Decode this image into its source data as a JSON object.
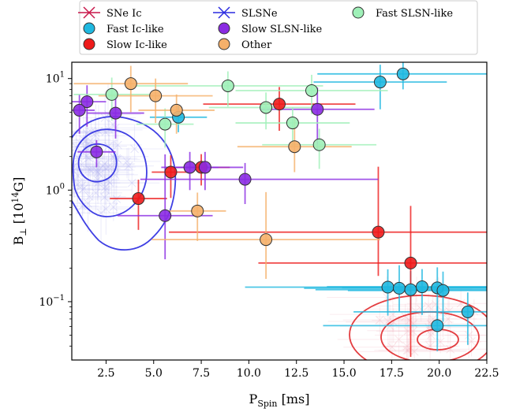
{
  "chart_data": {
    "type": "scatter",
    "xlabel_main": "P",
    "xlabel_sub": "Spin",
    "xlabel_unit": " [ms]",
    "ylabel_main": "B",
    "ylabel_sub": "⊥",
    "ylabel_unit_pre": " [10",
    "ylabel_unit_sup": "14",
    "ylabel_unit_post": "G]",
    "xlim": [
      0.7,
      22.5
    ],
    "ylim": [
      0.03,
      14
    ],
    "yscale": "log",
    "x_ticks": [
      2.5,
      5.0,
      7.5,
      10.0,
      12.5,
      15.0,
      17.5,
      20.0,
      22.5
    ],
    "x_tick_labels": [
      "2.5",
      "5.0",
      "7.5",
      "10.0",
      "12.5",
      "15.0",
      "17.5",
      "20.0",
      "22.5"
    ],
    "y_ticks": [
      0.1,
      1,
      10
    ],
    "y_tick_labels": [
      [
        "10",
        "−1"
      ],
      [
        "10",
        "0"
      ],
      [
        "10",
        "1"
      ]
    ],
    "legend": [
      {
        "label": "SNe Ic",
        "marker": "x",
        "color": "#c8174a"
      },
      {
        "label": "Fast Ic-like",
        "marker": "o",
        "color": "#1fb8e0"
      },
      {
        "label": "Slow Ic-like",
        "marker": "o",
        "color": "#ee1b1b"
      },
      {
        "label": "SLSNe",
        "marker": "x",
        "color": "#2a2ae0"
      },
      {
        "label": "Slow SLSN-like",
        "marker": "o",
        "color": "#8a2be2"
      },
      {
        "label": "Other",
        "marker": "o",
        "color": "#f5b06a"
      },
      {
        "label": "Fast SLSN-like",
        "marker": "o",
        "color": "#9ff0b8"
      }
    ],
    "colors": {
      "fast_ic": "#1fb8e0",
      "slow_ic": "#ee1b1b",
      "slow_slsn": "#8a2be2",
      "fast_slsn": "#9ff0b8",
      "other": "#f5b06a",
      "slsne_contour": "#2a2ae0",
      "snic_contour": "#e0282b",
      "slsne_bg": "#b4b4f0",
      "snic_bg": "#f0b4c0"
    },
    "series": [
      {
        "group": "fast_ic",
        "points": [
          {
            "x": 16.9,
            "y": 9.3,
            "xerr": [
              3.5,
              3.5
            ],
            "yerr": [
              4,
              4
            ]
          },
          {
            "x": 18.1,
            "y": 11.0,
            "xerr": [
              4.5,
              4.5
            ],
            "yerr": [
              3,
              3
            ]
          },
          {
            "x": 6.3,
            "y": 4.5,
            "xerr": [
              1.5,
              1.5
            ],
            "yerr": [
              1.2,
              1.2
            ]
          },
          {
            "x": 17.3,
            "y": 0.135,
            "xerr": [
              7.5,
              7.5
            ],
            "yerr": [
              0.06,
              0.06
            ]
          },
          {
            "x": 17.9,
            "y": 0.132,
            "xerr": [
              5,
              5
            ],
            "yerr": [
              0.05,
              0.08
            ]
          },
          {
            "x": 18.5,
            "y": 0.128,
            "xerr": [
              5,
              5
            ],
            "yerr": [
              0.05,
              0.06
            ]
          },
          {
            "x": 19.1,
            "y": 0.136,
            "xerr": [
              5,
              5
            ],
            "yerr": [
              0.06,
              0.06
            ]
          },
          {
            "x": 19.9,
            "y": 0.133,
            "xerr": [
              5,
              5
            ],
            "yerr": [
              0.07,
              0.07
            ]
          },
          {
            "x": 20.2,
            "y": 0.126,
            "xerr": [
              5,
              5
            ],
            "yerr": [
              0.06,
              0.06
            ]
          },
          {
            "x": 21.5,
            "y": 0.081,
            "xerr": [
              6,
              6
            ],
            "yerr": [
              0.04,
              0.04
            ]
          },
          {
            "x": 19.9,
            "y": 0.061,
            "xerr": [
              6,
              6
            ],
            "yerr": [
              0.025,
              0.03
            ]
          }
        ]
      },
      {
        "group": "slow_ic",
        "points": [
          {
            "x": 11.6,
            "y": 5.9,
            "xerr": [
              4,
              4
            ],
            "yerr": [
              2.5,
              2.5
            ]
          },
          {
            "x": 5.9,
            "y": 1.45,
            "xerr": [
              1,
              1
            ],
            "yerr": [
              0.6,
              0.6
            ]
          },
          {
            "x": 7.5,
            "y": 1.6,
            "xerr": [
              1.5,
              1.5
            ],
            "yerr": [
              0.5,
              0.5
            ]
          },
          {
            "x": 4.2,
            "y": 0.84,
            "xerr": [
              1.5,
              1.5
            ],
            "yerr": [
              0.4,
              0.4
            ]
          },
          {
            "x": 16.8,
            "y": 0.42,
            "xerr": [
              11,
              11
            ],
            "yerr": [
              0.25,
              1.2
            ]
          },
          {
            "x": 18.5,
            "y": 0.222,
            "xerr": [
              8,
              8
            ],
            "yerr": [
              0.19,
              0.5
            ]
          }
        ]
      },
      {
        "group": "slow_slsn",
        "points": [
          {
            "x": 1.5,
            "y": 6.2,
            "xerr": [
              1,
              1
            ],
            "yerr": [
              2.5,
              2.5
            ]
          },
          {
            "x": 1.1,
            "y": 5.2,
            "xerr": [
              0.8,
              0.8
            ],
            "yerr": [
              2,
              2
            ]
          },
          {
            "x": 3.0,
            "y": 4.9,
            "xerr": [
              1.5,
              1.5
            ],
            "yerr": [
              2,
              2
            ]
          },
          {
            "x": 2.0,
            "y": 2.2,
            "xerr": [
              1,
              1
            ],
            "yerr": [
              0.6,
              0.6
            ]
          },
          {
            "x": 6.9,
            "y": 1.6,
            "xerr": [
              1.5,
              1.5
            ],
            "yerr": [
              0.6,
              0.6
            ]
          },
          {
            "x": 7.7,
            "y": 1.6,
            "xerr": [
              2,
              2
            ],
            "yerr": [
              0.6,
              0.6
            ]
          },
          {
            "x": 9.8,
            "y": 1.25,
            "xerr": [
              5.5,
              7
            ],
            "yerr": [
              0.5,
              0.5
            ]
          },
          {
            "x": 5.6,
            "y": 0.59,
            "xerr": [
              2.5,
              2.5
            ],
            "yerr": [
              0.35,
              1.5
            ]
          },
          {
            "x": 13.6,
            "y": 5.3,
            "xerr": [
              3,
              3
            ],
            "yerr": [
              3,
              3
            ]
          }
        ]
      },
      {
        "group": "fast_slsn",
        "points": [
          {
            "x": 2.8,
            "y": 7.2,
            "xerr": [
              2,
              2
            ],
            "yerr": [
              3,
              3
            ]
          },
          {
            "x": 8.9,
            "y": 8.6,
            "xerr": [
              5,
              5
            ],
            "yerr": [
              3,
              3
            ]
          },
          {
            "x": 13.3,
            "y": 7.8,
            "xerr": [
              4,
              4
            ],
            "yerr": [
              3,
              3
            ]
          },
          {
            "x": 10.9,
            "y": 5.5,
            "xerr": [
              3,
              3
            ],
            "yerr": [
              2,
              2
            ]
          },
          {
            "x": 5.6,
            "y": 3.9,
            "xerr": [
              1.5,
              1.5
            ],
            "yerr": [
              1.5,
              1.5
            ]
          },
          {
            "x": 12.3,
            "y": 4.0,
            "xerr": [
              3,
              3
            ],
            "yerr": [
              1.5,
              1.5
            ]
          },
          {
            "x": 13.7,
            "y": 2.55,
            "xerr": [
              3,
              3
            ],
            "yerr": [
              1,
              1
            ]
          }
        ]
      },
      {
        "group": "other",
        "points": [
          {
            "x": 3.8,
            "y": 9.0,
            "xerr": [
              3,
              3
            ],
            "yerr": [
              4,
              4
            ]
          },
          {
            "x": 5.1,
            "y": 7.0,
            "xerr": [
              3,
              3
            ],
            "yerr": [
              3,
              3
            ]
          },
          {
            "x": 6.2,
            "y": 5.2,
            "xerr": [
              2,
              2
            ],
            "yerr": [
              2,
              2
            ]
          },
          {
            "x": 12.4,
            "y": 2.45,
            "xerr": [
              3,
              3
            ],
            "yerr": [
              1,
              2
            ]
          },
          {
            "x": 7.3,
            "y": 0.65,
            "xerr": [
              1.5,
              1.5
            ],
            "yerr": [
              0.3,
              0.3
            ]
          },
          {
            "x": 10.9,
            "y": 0.36,
            "xerr": [
              6,
              6
            ],
            "yerr": [
              0.2,
              0.6
            ]
          }
        ]
      }
    ]
  }
}
